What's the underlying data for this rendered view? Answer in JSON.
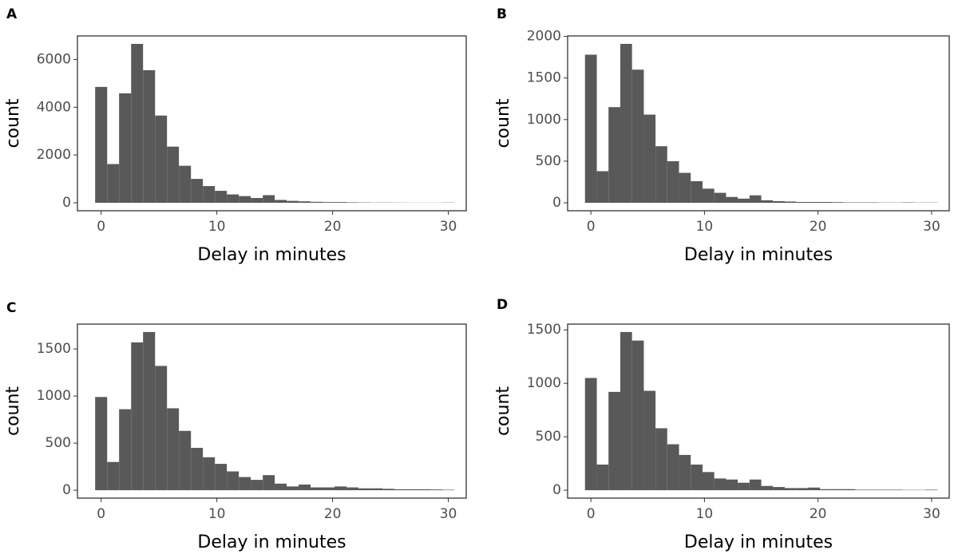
{
  "chart_data": [
    {
      "type": "histogram",
      "title": "A",
      "x_label": "Delay in minutes",
      "y_label": "count",
      "color": "#595959",
      "bins": [
        -0.52,
        0.52,
        1.55,
        2.59,
        3.62,
        4.66,
        5.69,
        6.72,
        7.76,
        8.79,
        9.83,
        10.86,
        11.9,
        12.93,
        13.97,
        15.0,
        16.03,
        17.07,
        18.1,
        19.14,
        20.17,
        21.21,
        22.24,
        23.28,
        24.31,
        25.34,
        26.38,
        27.41,
        28.45,
        29.48,
        30.52
      ],
      "values": [
        4850,
        1620,
        4580,
        6650,
        5550,
        3650,
        2350,
        1550,
        1000,
        700,
        500,
        350,
        280,
        200,
        320,
        120,
        80,
        60,
        40,
        30,
        30,
        20,
        15,
        10,
        10,
        8,
        5,
        5,
        5,
        10
      ],
      "xlim": [
        -2.05,
        31.55
      ],
      "xticks": [
        0,
        10,
        20,
        30
      ],
      "ylim": [
        -333,
        6983
      ],
      "yticks": [
        0,
        2000,
        4000,
        6000
      ]
    },
    {
      "type": "histogram",
      "title": "B",
      "x_label": "Delay in minutes",
      "y_label": "count",
      "color": "#595959",
      "bins": [
        -0.52,
        0.52,
        1.55,
        2.59,
        3.62,
        4.66,
        5.69,
        6.72,
        7.76,
        8.79,
        9.83,
        10.86,
        11.9,
        12.93,
        13.97,
        15.0,
        16.03,
        17.07,
        18.1,
        19.14,
        20.17,
        21.21,
        22.24,
        23.28,
        24.31,
        25.34,
        26.38,
        27.41,
        28.45,
        29.48,
        30.52
      ],
      "values": [
        1780,
        380,
        1150,
        1910,
        1600,
        1060,
        680,
        500,
        360,
        260,
        170,
        120,
        70,
        50,
        90,
        30,
        20,
        15,
        10,
        10,
        10,
        8,
        5,
        5,
        5,
        3,
        3,
        5,
        3,
        3
      ],
      "xlim": [
        -2.05,
        31.55
      ],
      "xticks": [
        0,
        10,
        20,
        30
      ],
      "ylim": [
        -95.5,
        2005.5
      ],
      "yticks": [
        0,
        500,
        1000,
        1500,
        2000
      ]
    },
    {
      "type": "histogram",
      "title": "C",
      "x_label": "Delay in minutes",
      "y_label": "count",
      "color": "#595959",
      "bins": [
        -0.52,
        0.52,
        1.55,
        2.59,
        3.62,
        4.66,
        5.69,
        6.72,
        7.76,
        8.79,
        9.83,
        10.86,
        11.9,
        12.93,
        13.97,
        15.0,
        16.03,
        17.07,
        18.1,
        19.14,
        20.17,
        21.21,
        22.24,
        23.28,
        24.31,
        25.34,
        26.38,
        27.41,
        28.45,
        29.48,
        30.52
      ],
      "values": [
        990,
        300,
        860,
        1570,
        1680,
        1320,
        870,
        630,
        450,
        350,
        280,
        200,
        140,
        110,
        160,
        70,
        40,
        60,
        30,
        30,
        40,
        30,
        20,
        20,
        15,
        10,
        10,
        10,
        8,
        5
      ],
      "xlim": [
        -2.05,
        31.55
      ],
      "xticks": [
        0,
        10,
        20,
        30
      ],
      "ylim": [
        -84,
        1764
      ],
      "yticks": [
        0,
        500,
        1000,
        1500
      ]
    },
    {
      "type": "histogram",
      "title": "D",
      "x_label": "Delay in minutes",
      "y_label": "count",
      "color": "#595959",
      "bins": [
        -0.52,
        0.52,
        1.55,
        2.59,
        3.62,
        4.66,
        5.69,
        6.72,
        7.76,
        8.79,
        9.83,
        10.86,
        11.9,
        12.93,
        13.97,
        15.0,
        16.03,
        17.07,
        18.1,
        19.14,
        20.17,
        21.21,
        22.24,
        23.28,
        24.31,
        25.34,
        26.38,
        27.41,
        28.45,
        29.48,
        30.52
      ],
      "values": [
        1050,
        240,
        920,
        1480,
        1400,
        930,
        580,
        430,
        330,
        240,
        170,
        110,
        100,
        70,
        100,
        40,
        30,
        20,
        20,
        25,
        10,
        10,
        10,
        5,
        5,
        5,
        5,
        3,
        3,
        5
      ],
      "xlim": [
        -2.05,
        31.55
      ],
      "xticks": [
        0,
        10,
        20,
        30
      ],
      "ylim": [
        -74,
        1554
      ],
      "yticks": [
        0,
        500,
        1000,
        1500
      ]
    }
  ]
}
